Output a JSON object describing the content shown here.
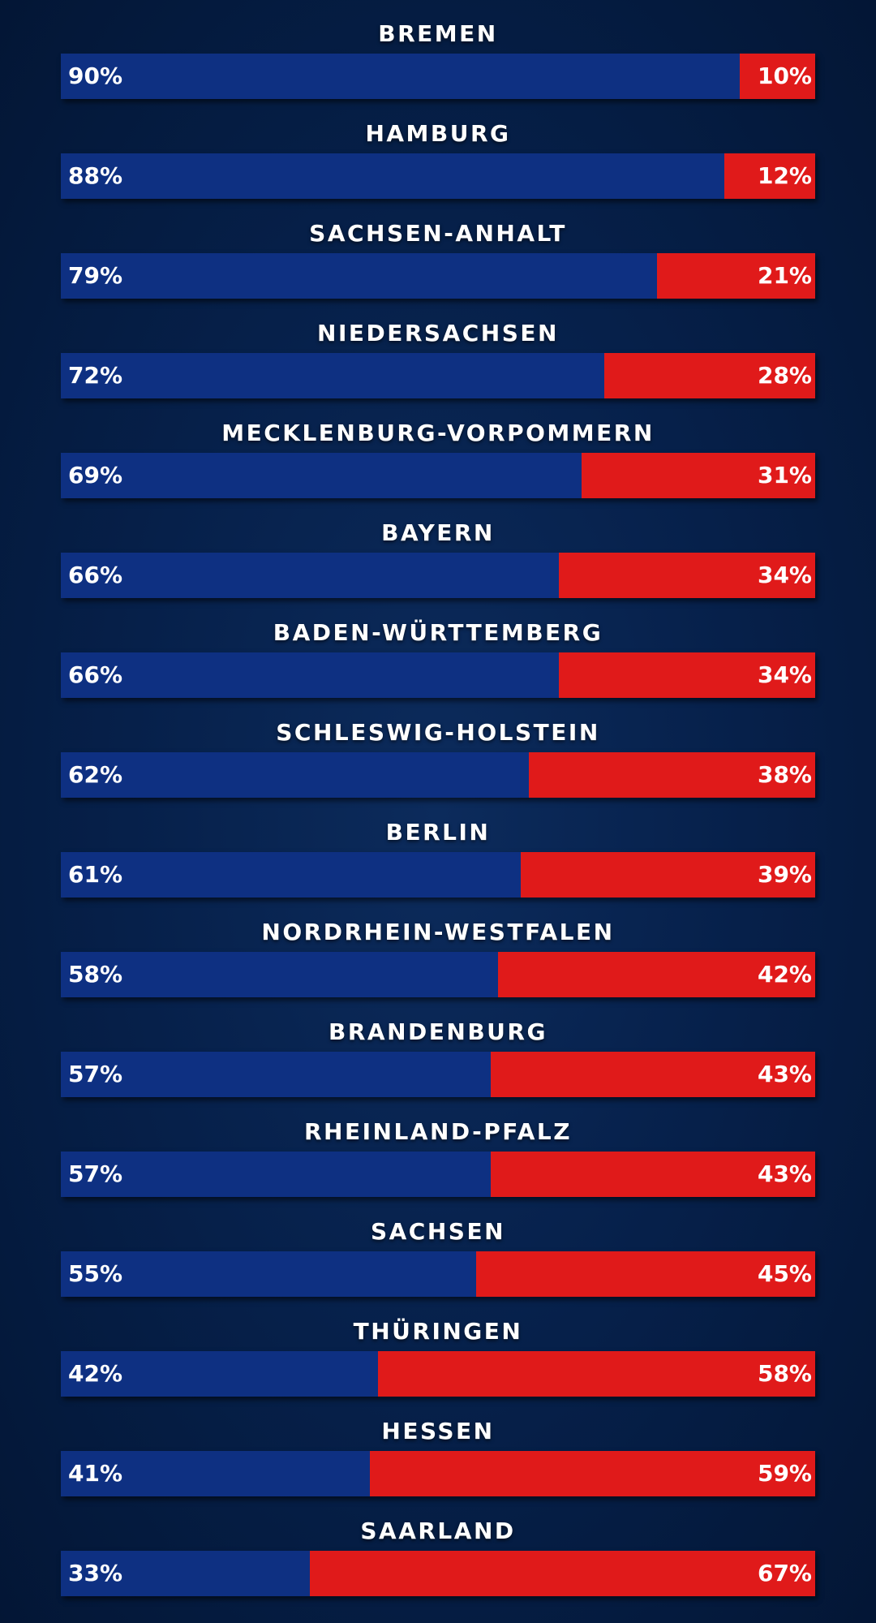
{
  "colors": {
    "series_a": "#0e3082",
    "series_b": "#e01a1a",
    "background": "#06204a"
  },
  "chart_data": {
    "type": "bar",
    "orientation": "horizontal-stacked-100",
    "categories": [
      "BREMEN",
      "HAMBURG",
      "SACHSEN-ANHALT",
      "NIEDERSACHSEN",
      "MECKLENBURG-VORPOMMERN",
      "BAYERN",
      "BADEN-WÜRTTEMBERG",
      "SCHLESWIG-HOLSTEIN",
      "BERLIN",
      "NORDRHEIN-WESTFALEN",
      "BRANDENBURG",
      "RHEINLAND-PFALZ",
      "SACHSEN",
      "THÜRINGEN",
      "HESSEN",
      "SAARLAND"
    ],
    "series": [
      {
        "color": "#0e3082",
        "values": [
          90,
          88,
          79,
          72,
          69,
          66,
          66,
          62,
          61,
          58,
          57,
          57,
          55,
          42,
          41,
          33
        ]
      },
      {
        "color": "#e01a1a",
        "values": [
          10,
          12,
          21,
          28,
          31,
          34,
          34,
          38,
          39,
          42,
          43,
          43,
          45,
          58,
          59,
          67
        ]
      }
    ],
    "unit": "%",
    "xlim": [
      0,
      100
    ],
    "grid": false,
    "legend": "none"
  }
}
